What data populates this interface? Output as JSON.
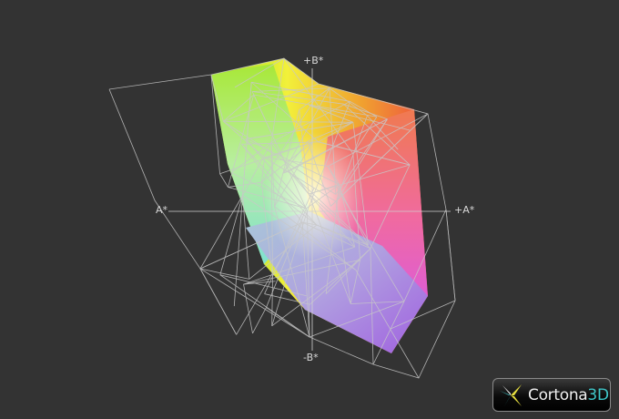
{
  "viewer": {
    "axes": {
      "plus_b": "+B*",
      "plus_a": "+A*",
      "minus_a": "A*",
      "minus_b": "-B*"
    },
    "logo": {
      "name": "Cortona",
      "suffix": "3D"
    },
    "colors": {
      "background": "#333333",
      "wireframe": "#c8c8c8",
      "logo_accent": "#3fc6c8"
    }
  }
}
